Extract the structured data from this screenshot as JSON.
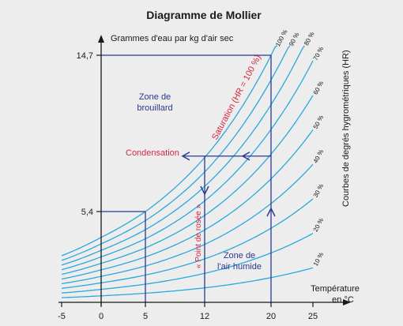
{
  "chart_data": {
    "type": "line",
    "title": "Diagramme de Mollier",
    "ylabel": "Grammes d'eau par kg d'air sec",
    "xlabel_line1": "Température",
    "xlabel_line2": "en °C",
    "right_label": "Courbes de degrés hygrométriques (HR)",
    "xlim": [
      -5,
      25
    ],
    "ylim": [
      0,
      14.7
    ],
    "x_ticks": [
      -5,
      0,
      5,
      12,
      20,
      25
    ],
    "x_tick_labels": [
      "-5",
      "0",
      "5",
      "12",
      "20",
      "25"
    ],
    "y_ticks": [
      5.4,
      14.7
    ],
    "y_tick_labels": [
      "5,4",
      "14,7"
    ],
    "series": [
      {
        "name": "100 %",
        "rh": 100
      },
      {
        "name": "90 %",
        "rh": 90
      },
      {
        "name": "80 %",
        "rh": 80
      },
      {
        "name": "70 %",
        "rh": 70
      },
      {
        "name": "60 %",
        "rh": 60
      },
      {
        "name": "50 %",
        "rh": 50
      },
      {
        "name": "40 %",
        "rh": 40
      },
      {
        "name": "30 %",
        "rh": 30
      },
      {
        "name": "20 %",
        "rh": 20
      },
      {
        "name": "10 %",
        "rh": 10
      }
    ],
    "saturation_points": [
      {
        "x": 5,
        "y": 5.4
      },
      {
        "x": 12,
        "y": 8.7
      },
      {
        "x": 20,
        "y": 14.7
      }
    ],
    "annotations": {
      "fog_zone_1": "Zone de",
      "fog_zone_2": "brouillard",
      "humid_zone_1": "Zone de",
      "humid_zone_2": "l'air humide",
      "saturation": "Saturation (HR = 100 %)",
      "condensation": "Condensation",
      "dew_point": "« Point de rosée »"
    },
    "colors": {
      "curves": "#29a8df",
      "axes": "#1a1a1a",
      "guides": "#2b3990",
      "highlight": "#d7263d",
      "background": "#ededed"
    }
  }
}
